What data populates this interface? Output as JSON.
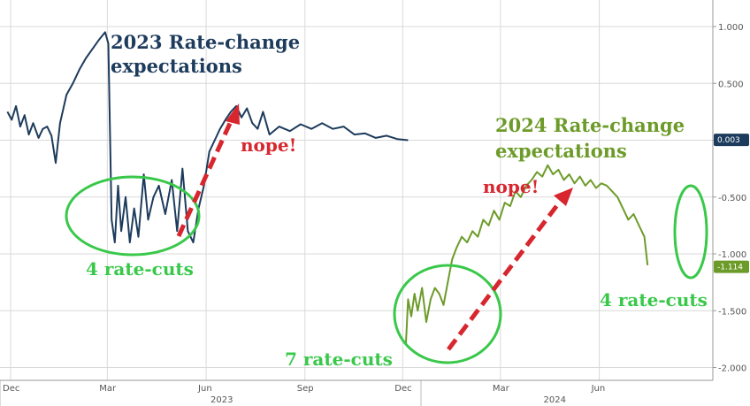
{
  "chart_data": {
    "type": "line",
    "ylim": [
      -2.0,
      1.2
    ],
    "y_ticks": [
      "1.000",
      "0.500",
      "0.000",
      "-0.500",
      "-1.000",
      "-1.500",
      "-2.000"
    ],
    "x_month_labels": [
      "Dec",
      "Mar",
      "Jun",
      "Sep",
      "Dec",
      "Mar",
      "Jun"
    ],
    "x_year_labels": [
      "2023",
      "2024"
    ],
    "grid": true,
    "series": [
      {
        "name": "2023 Rate-change expectations",
        "color": "#1d3b5c",
        "last_value_label": "0.003",
        "points": [
          [
            "2022-11-28",
            0.25
          ],
          [
            "2022-12-02",
            0.18
          ],
          [
            "2022-12-06",
            0.3
          ],
          [
            "2022-12-10",
            0.12
          ],
          [
            "2022-12-14",
            0.22
          ],
          [
            "2022-12-18",
            0.05
          ],
          [
            "2022-12-22",
            0.15
          ],
          [
            "2022-12-27",
            0.02
          ],
          [
            "2022-12-31",
            0.1
          ],
          [
            "2023-01-04",
            0.12
          ],
          [
            "2023-01-08",
            0.04
          ],
          [
            "2023-01-12",
            -0.2
          ],
          [
            "2023-01-16",
            0.15
          ],
          [
            "2023-01-22",
            0.4
          ],
          [
            "2023-01-28",
            0.5
          ],
          [
            "2023-02-03",
            0.62
          ],
          [
            "2023-02-09",
            0.72
          ],
          [
            "2023-02-15",
            0.8
          ],
          [
            "2023-02-21",
            0.88
          ],
          [
            "2023-02-27",
            0.95
          ],
          [
            "2023-03-02",
            0.85
          ],
          [
            "2023-03-05",
            -0.7
          ],
          [
            "2023-03-08",
            -0.9
          ],
          [
            "2023-03-11",
            -0.4
          ],
          [
            "2023-03-14",
            -0.8
          ],
          [
            "2023-03-18",
            -0.5
          ],
          [
            "2023-03-22",
            -0.9
          ],
          [
            "2023-03-26",
            -0.6
          ],
          [
            "2023-03-30",
            -0.85
          ],
          [
            "2023-04-04",
            -0.3
          ],
          [
            "2023-04-08",
            -0.7
          ],
          [
            "2023-04-13",
            -0.5
          ],
          [
            "2023-04-18",
            -0.4
          ],
          [
            "2023-04-24",
            -0.65
          ],
          [
            "2023-04-30",
            -0.35
          ],
          [
            "2023-05-05",
            -0.8
          ],
          [
            "2023-05-10",
            -0.25
          ],
          [
            "2023-05-15",
            -0.8
          ],
          [
            "2023-05-20",
            -0.9
          ],
          [
            "2023-05-25",
            -0.6
          ],
          [
            "2023-05-30",
            -0.4
          ],
          [
            "2023-06-04",
            -0.1
          ],
          [
            "2023-06-09",
            0.0
          ],
          [
            "2023-06-14",
            0.1
          ],
          [
            "2023-06-19",
            0.18
          ],
          [
            "2023-06-24",
            0.25
          ],
          [
            "2023-06-29",
            0.3
          ],
          [
            "2023-07-04",
            0.2
          ],
          [
            "2023-07-09",
            0.28
          ],
          [
            "2023-07-14",
            0.15
          ],
          [
            "2023-07-19",
            0.1
          ],
          [
            "2023-07-24",
            0.25
          ],
          [
            "2023-07-30",
            0.05
          ],
          [
            "2023-08-08",
            0.12
          ],
          [
            "2023-08-18",
            0.08
          ],
          [
            "2023-08-28",
            0.14
          ],
          [
            "2023-09-07",
            0.1
          ],
          [
            "2023-09-17",
            0.15
          ],
          [
            "2023-09-27",
            0.1
          ],
          [
            "2023-10-07",
            0.12
          ],
          [
            "2023-10-17",
            0.05
          ],
          [
            "2023-10-27",
            0.06
          ],
          [
            "2023-11-06",
            0.02
          ],
          [
            "2023-11-16",
            0.04
          ],
          [
            "2023-11-26",
            0.01
          ],
          [
            "2023-12-06",
            0.0
          ]
        ]
      },
      {
        "name": "2024 Rate-change expectations",
        "color": "#6d9b2a",
        "last_value_label": "-1.114",
        "points": [
          [
            "2023-12-04",
            -1.8
          ],
          [
            "2023-12-06",
            -1.4
          ],
          [
            "2023-12-09",
            -1.55
          ],
          [
            "2023-12-12",
            -1.35
          ],
          [
            "2023-12-15",
            -1.5
          ],
          [
            "2023-12-19",
            -1.3
          ],
          [
            "2023-12-23",
            -1.6
          ],
          [
            "2023-12-27",
            -1.4
          ],
          [
            "2023-12-31",
            -1.3
          ],
          [
            "2024-01-04",
            -1.35
          ],
          [
            "2024-01-08",
            -1.45
          ],
          [
            "2024-01-12",
            -1.25
          ],
          [
            "2024-01-16",
            -1.05
          ],
          [
            "2024-01-20",
            -0.95
          ],
          [
            "2024-01-25",
            -0.85
          ],
          [
            "2024-01-30",
            -0.9
          ],
          [
            "2024-02-04",
            -0.8
          ],
          [
            "2024-02-09",
            -0.85
          ],
          [
            "2024-02-14",
            -0.7
          ],
          [
            "2024-02-19",
            -0.75
          ],
          [
            "2024-02-24",
            -0.62
          ],
          [
            "2024-02-29",
            -0.7
          ],
          [
            "2024-03-05",
            -0.55
          ],
          [
            "2024-03-10",
            -0.58
          ],
          [
            "2024-03-15",
            -0.45
          ],
          [
            "2024-03-20",
            -0.5
          ],
          [
            "2024-03-25",
            -0.4
          ],
          [
            "2024-03-30",
            -0.35
          ],
          [
            "2024-04-04",
            -0.28
          ],
          [
            "2024-04-09",
            -0.32
          ],
          [
            "2024-04-14",
            -0.22
          ],
          [
            "2024-04-19",
            -0.3
          ],
          [
            "2024-04-24",
            -0.26
          ],
          [
            "2024-04-29",
            -0.35
          ],
          [
            "2024-05-04",
            -0.3
          ],
          [
            "2024-05-09",
            -0.38
          ],
          [
            "2024-05-14",
            -0.32
          ],
          [
            "2024-05-19",
            -0.4
          ],
          [
            "2024-05-24",
            -0.35
          ],
          [
            "2024-05-29",
            -0.42
          ],
          [
            "2024-06-03",
            -0.38
          ],
          [
            "2024-06-08",
            -0.4
          ],
          [
            "2024-06-13",
            -0.45
          ],
          [
            "2024-06-18",
            -0.5
          ],
          [
            "2024-06-23",
            -0.6
          ],
          [
            "2024-06-28",
            -0.7
          ],
          [
            "2024-07-03",
            -0.65
          ],
          [
            "2024-07-08",
            -0.75
          ],
          [
            "2024-07-13",
            -0.85
          ],
          [
            "2024-07-16",
            -1.1
          ]
        ]
      }
    ],
    "annotations": {
      "title_2023_line1": "2023 Rate-change",
      "title_2023_line2": "expectations",
      "title_2024_line1": "2024 Rate-change",
      "title_2024_line2": "expectations",
      "nope_1": "nope!",
      "nope_2": "nope!",
      "cuts_4_left": "4 rate-cuts",
      "cuts_7": "7 rate-cuts",
      "cuts_4_right": "4 rate-cuts"
    },
    "colors": {
      "navy": "#1d3b5c",
      "olive": "#6d9b2a",
      "annotation_green": "#39c84a",
      "annotation_red": "#d7262e",
      "grid": "#d9d9d9"
    }
  }
}
